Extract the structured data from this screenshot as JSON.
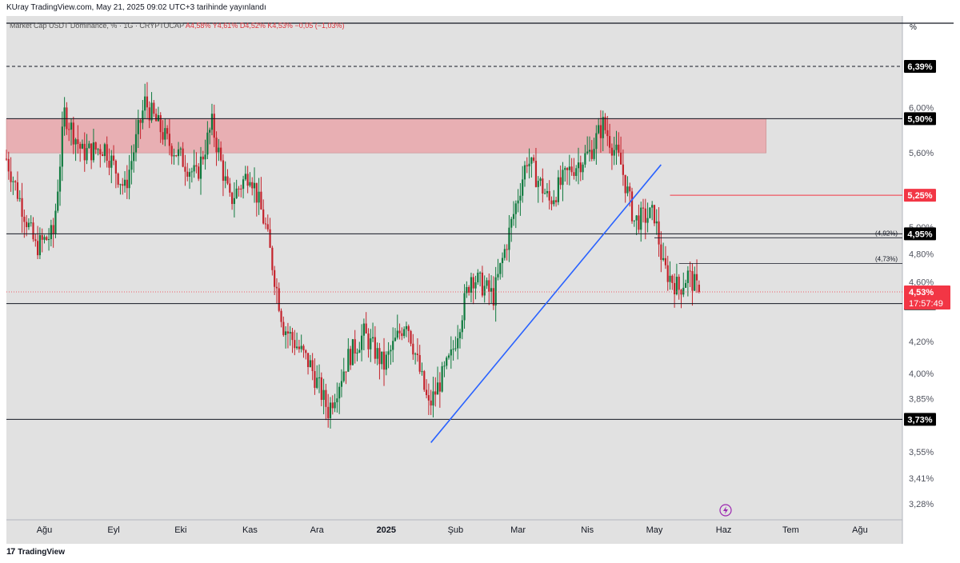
{
  "header": {
    "publish_line": "KUray TradingView.com, May 21, 2025 09:02 UTC+3 tarihinde yayınlandı"
  },
  "legend": {
    "symbol": "Market Cap USDT Dominance, % · 1G · CRYPTOCAP",
    "open": "A4,58%",
    "high": "Y4,61%",
    "low": "D4,52%",
    "close": "K4,53%",
    "change": "−0,05 (−1,03%)"
  },
  "footer": {
    "logo": "17",
    "brand": "TradingView"
  },
  "price_scale": {
    "unit": "%",
    "ticks": [
      "6,00%",
      "5,60%",
      "5,00%",
      "4,80%",
      "4,60%",
      "4,20%",
      "4,00%",
      "3,85%",
      "3,55%",
      "3,41%",
      "3,28%"
    ]
  },
  "time_scale": {
    "labels": [
      "Ağu",
      "Eyl",
      "Eki",
      "Kas",
      "Ara",
      "2025",
      "Şub",
      "Mar",
      "Nis",
      "May",
      "Haz",
      "Tem",
      "Ağu"
    ]
  },
  "colors": {
    "up": "#0f7a3e",
    "down": "#c4232c",
    "trendline": "#2962ff",
    "zone": "#e9a6aa",
    "background": "#e1e1e1"
  },
  "chart_data": {
    "type": "candlestick",
    "symbol": "USDT.D",
    "interval": "1D",
    "y_scale": "log",
    "ylim": [
      3.2,
      6.9
    ],
    "x_range": [
      "2024-07-15",
      "2025-08-20"
    ],
    "candles_range": [
      "2024-07-15",
      "2025-05-21"
    ],
    "last": {
      "open": 4.58,
      "high": 4.61,
      "low": 4.52,
      "close": 4.53,
      "change": -0.05,
      "change_pct": -1.03
    },
    "price_path": [
      [
        "2024-07-15",
        5.55
      ],
      [
        "2024-07-28",
        4.85
      ],
      [
        "2024-08-05",
        4.95
      ],
      [
        "2024-08-10",
        5.95
      ],
      [
        "2024-08-18",
        5.6
      ],
      [
        "2024-08-28",
        5.65
      ],
      [
        "2024-09-06",
        5.3
      ],
      [
        "2024-09-15",
        6.05
      ],
      [
        "2024-09-25",
        5.7
      ],
      [
        "2024-10-08",
        5.4
      ],
      [
        "2024-10-15",
        5.85
      ],
      [
        "2024-10-23",
        5.2
      ],
      [
        "2024-11-01",
        5.45
      ],
      [
        "2024-11-08",
        5.0
      ],
      [
        "2024-11-16",
        4.3
      ],
      [
        "2024-11-28",
        4.05
      ],
      [
        "2024-12-06",
        3.78
      ],
      [
        "2024-12-15",
        4.1
      ],
      [
        "2024-12-22",
        4.25
      ],
      [
        "2024-12-31",
        4.05
      ],
      [
        "2025-01-10",
        4.35
      ],
      [
        "2025-01-20",
        3.8
      ],
      [
        "2025-01-30",
        4.1
      ],
      [
        "2025-02-08",
        4.65
      ],
      [
        "2025-02-18",
        4.5
      ],
      [
        "2025-02-27",
        5.1
      ],
      [
        "2025-03-05",
        5.55
      ],
      [
        "2025-03-15",
        5.2
      ],
      [
        "2025-03-24",
        5.45
      ],
      [
        "2025-04-02",
        5.6
      ],
      [
        "2025-04-08",
        5.85
      ],
      [
        "2025-04-16",
        5.5
      ],
      [
        "2025-04-22",
        5.05
      ],
      [
        "2025-05-01",
        5.1
      ],
      [
        "2025-05-05",
        4.7
      ],
      [
        "2025-05-12",
        4.55
      ],
      [
        "2025-05-16",
        4.65
      ],
      [
        "2025-05-21",
        4.53
      ]
    ],
    "horizontal_levels": [
      {
        "value": 6.39,
        "label": "6,39%",
        "style": "dashed",
        "color": "#131722"
      },
      {
        "value": 5.9,
        "label": "5,90%",
        "style": "solid",
        "color": "#131722"
      },
      {
        "value": 5.25,
        "label": "5,25%",
        "style": "solid",
        "color": "#f23645"
      },
      {
        "value": 4.95,
        "label": "4,95%",
        "style": "solid",
        "color": "#131722"
      },
      {
        "value": 4.45,
        "label": "4,45%",
        "style": "solid",
        "color": "#131722"
      },
      {
        "value": 3.73,
        "label": "3,73%",
        "style": "solid",
        "color": "#131722"
      }
    ],
    "short_levels": [
      {
        "value": 4.92,
        "label": "(4,92%)",
        "from": "2025-05-01"
      },
      {
        "value": 4.73,
        "label": "(4,73%)",
        "from": "2025-05-12"
      }
    ],
    "zone": {
      "from": 5.6,
      "to": 5.9,
      "x_from": "2024-07-15",
      "x_to": "2025-06-20"
    },
    "trendline": {
      "x1": "2025-01-21",
      "y1": 3.6,
      "x2": "2025-05-04",
      "y2": 5.5
    },
    "current_price_label": {
      "value": 4.53,
      "label": "4,53%",
      "countdown": "17:57:49"
    }
  }
}
